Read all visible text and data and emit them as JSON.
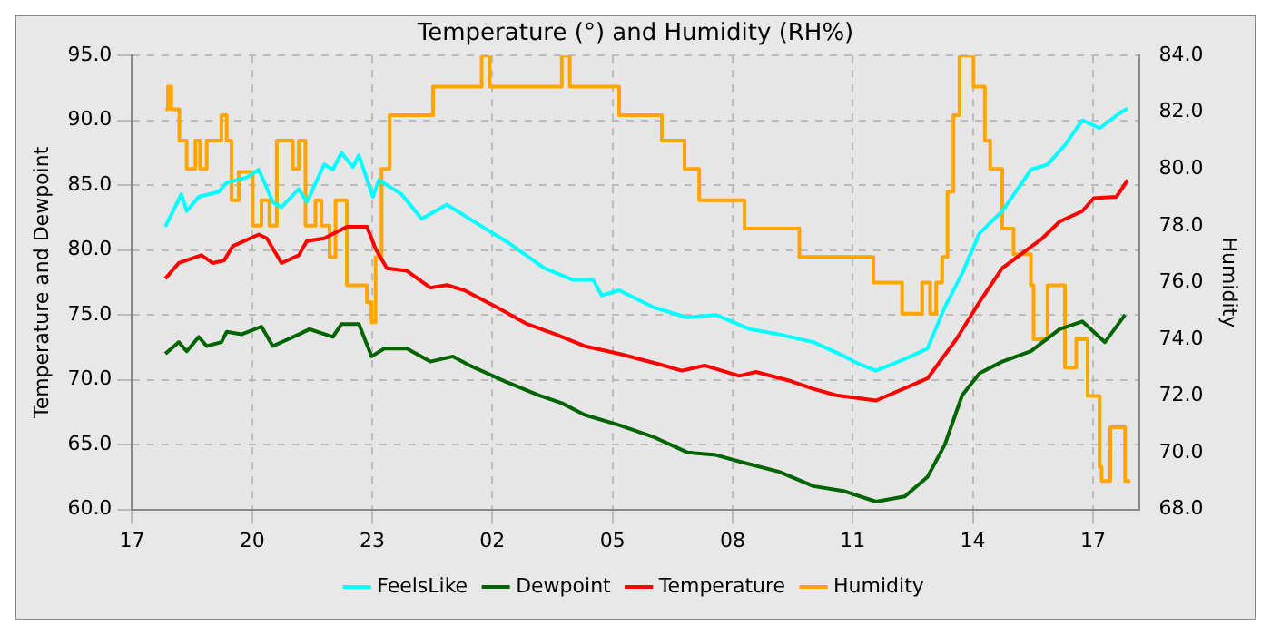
{
  "chart_data": {
    "type": "line",
    "title": "Temperature (°) and Humidity (RH%)",
    "ylabel": "Temperature and Dewpoint",
    "y2label": "Humidity",
    "xlim": [
      "--01-01T17:00",
      "--01-02T18:09"
    ],
    "xticks": [
      {
        "value": "--01-01T17:00",
        "label": "17"
      },
      {
        "value": "--01-01T20:00",
        "label": "20"
      },
      {
        "value": "--01-01T23:00",
        "label": "23"
      },
      {
        "value": "--01-02T02:00",
        "label": "02"
      },
      {
        "value": "--01-02T05:00",
        "label": "05"
      },
      {
        "value": "--01-02T08:00",
        "label": "08"
      },
      {
        "value": "--01-02T11:00",
        "label": "11"
      },
      {
        "value": "--01-02T14:00",
        "label": "14"
      },
      {
        "value": "--01-02T17:00",
        "label": "17"
      }
    ],
    "ylim": [
      60,
      95
    ],
    "yticks": [
      {
        "value": 60,
        "label": "60.0"
      },
      {
        "value": 65,
        "label": "65.0"
      },
      {
        "value": 70,
        "label": "70.0"
      },
      {
        "value": 75,
        "label": "75.0"
      },
      {
        "value": 80,
        "label": "80.0"
      },
      {
        "value": 85,
        "label": "85.0"
      },
      {
        "value": 90,
        "label": "90.0"
      },
      {
        "value": 95,
        "label": "95.0"
      }
    ],
    "y2lim": [
      68,
      84
    ],
    "y2ticks": [
      {
        "value": 68,
        "label": "68.0"
      },
      {
        "value": 70,
        "label": "70.0"
      },
      {
        "value": 72,
        "label": "72.0"
      },
      {
        "value": 74,
        "label": "74.0"
      },
      {
        "value": 76,
        "label": "76.0"
      },
      {
        "value": 78,
        "label": "78.0"
      },
      {
        "value": 80,
        "label": "80.0"
      },
      {
        "value": 82,
        "label": "82.0"
      },
      {
        "value": 84,
        "label": "84.0"
      }
    ],
    "grid": true,
    "legend": "bottom",
    "marker": "none",
    "line_style": "solid",
    "series": [
      {
        "name": "FeelsLike",
        "color": "#00ffff",
        "x": [
          "--01-01T17:50",
          "--01-01T18:14",
          "--01-01T18:22",
          "--01-01T18:40",
          "--01-01T19:10",
          "--01-01T19:22",
          "--01-01T19:52",
          "--01-01T20:10",
          "--01-01T20:31",
          "--01-01T20:44",
          "--01-01T21:10",
          "--01-01T21:22",
          "--01-01T21:48",
          "--01-01T22:01",
          "--01-01T22:14",
          "--01-01T22:31",
          "--01-01T22:40",
          "--01-01T23:01",
          "--01-01T23:10",
          "--01-01T23:44",
          "--01-02T00:14",
          "--01-02T00:52",
          "--01-02T01:26",
          "--01-02T02:26",
          "--01-02T03:18",
          "--01-02T04:01",
          "--01-02T04:31",
          "--01-02T04:44",
          "--01-02T05:10",
          "--01-02T06:01",
          "--01-02T06:52",
          "--01-02T07:35",
          "--01-02T08:26",
          "--01-02T09:10",
          "--01-02T10:01",
          "--01-02T10:48",
          "--01-02T11:10",
          "--01-02T11:35",
          "--01-02T12:18",
          "--01-02T12:52",
          "--01-02T13:18",
          "--01-02T13:44",
          "--01-02T14:10",
          "--01-02T14:44",
          "--01-02T15:27",
          "--01-02T15:52",
          "--01-02T16:18",
          "--01-02T16:44",
          "--01-02T17:10",
          "--01-02T17:44",
          "--01-02T17:52"
        ],
        "values": [
          81.8,
          84.3,
          83.0,
          84.1,
          84.5,
          85.2,
          85.6,
          86.2,
          83.7,
          83.3,
          84.7,
          83.7,
          86.6,
          86.2,
          87.5,
          86.4,
          87.3,
          84.1,
          85.4,
          84.3,
          82.4,
          83.5,
          82.4,
          80.5,
          78.6,
          77.7,
          77.7,
          76.5,
          76.9,
          75.6,
          74.8,
          75.0,
          73.9,
          73.5,
          72.9,
          71.8,
          71.2,
          70.7,
          71.6,
          72.4,
          75.6,
          78.2,
          81.3,
          83.0,
          86.2,
          86.6,
          88.1,
          90.0,
          89.4,
          90.7,
          90.9
        ]
      },
      {
        "name": "Dewpoint",
        "color": "#006400",
        "x": [
          "--01-01T17:50",
          "--01-01T18:10",
          "--01-01T18:22",
          "--01-01T18:40",
          "--01-01T18:52",
          "--01-01T19:14",
          "--01-01T19:22",
          "--01-01T19:44",
          "--01-01T20:14",
          "--01-01T20:31",
          "--01-01T21:10",
          "--01-01T21:26",
          "--01-01T22:01",
          "--01-01T22:14",
          "--01-01T22:40",
          "--01-01T22:59",
          "--01-01T23:18",
          "--01-01T23:52",
          "--01-02T00:27",
          "--01-02T01:01",
          "--01-02T01:26",
          "--01-02T02:18",
          "--01-02T03:10",
          "--01-02T03:44",
          "--01-02T04:18",
          "--01-02T05:10",
          "--01-02T06:01",
          "--01-02T06:52",
          "--01-02T07:35",
          "--01-02T08:10",
          "--01-02T09:10",
          "--01-02T10:01",
          "--01-02T10:48",
          "--01-02T11:35",
          "--01-02T12:18",
          "--01-02T12:52",
          "--01-02T13:18",
          "--01-02T13:44",
          "--01-02T14:10",
          "--01-02T14:44",
          "--01-02T15:27",
          "--01-02T16:10",
          "--01-02T16:44",
          "--01-02T17:18",
          "--01-02T17:48"
        ],
        "values": [
          72.0,
          72.9,
          72.2,
          73.3,
          72.6,
          72.9,
          73.7,
          73.5,
          74.1,
          72.6,
          73.5,
          73.9,
          73.3,
          74.3,
          74.3,
          71.8,
          72.4,
          72.4,
          71.4,
          71.8,
          71.1,
          69.9,
          68.8,
          68.2,
          67.3,
          66.5,
          65.6,
          64.4,
          64.2,
          63.7,
          62.9,
          61.8,
          61.4,
          60.6,
          61.0,
          62.5,
          65.0,
          68.8,
          70.5,
          71.4,
          72.2,
          73.9,
          74.5,
          72.9,
          75.0
        ]
      },
      {
        "name": "Temperature",
        "color": "#ff0000",
        "x": [
          "--01-01T17:50",
          "--01-01T18:10",
          "--01-01T18:44",
          "--01-01T19:01",
          "--01-01T19:18",
          "--01-01T19:31",
          "--01-01T20:10",
          "--01-01T20:22",
          "--01-01T20:44",
          "--01-01T21:10",
          "--01-01T21:22",
          "--01-01T21:48",
          "--01-01T22:22",
          "--01-01T22:52",
          "--01-01T23:05",
          "--01-01T23:22",
          "--01-01T23:52",
          "--01-02T00:27",
          "--01-02T00:52",
          "--01-02T01:18",
          "--01-02T02:10",
          "--01-02T02:52",
          "--01-02T03:35",
          "--01-02T04:18",
          "--01-02T05:10",
          "--01-02T06:10",
          "--01-02T06:44",
          "--01-02T07:18",
          "--01-02T08:10",
          "--01-02T08:35",
          "--01-02T09:27",
          "--01-02T10:01",
          "--01-02T10:35",
          "--01-02T11:35",
          "--01-02T12:52",
          "--01-02T13:35",
          "--01-02T14:10",
          "--01-02T14:44",
          "--01-02T15:44",
          "--01-02T16:10",
          "--01-02T16:44",
          "--01-02T17:01",
          "--01-02T17:35",
          "--01-02T17:52"
        ],
        "values": [
          77.8,
          79.0,
          79.6,
          79.0,
          79.2,
          80.3,
          81.2,
          80.9,
          79.0,
          79.6,
          80.7,
          80.9,
          81.8,
          81.8,
          80.1,
          78.6,
          78.4,
          77.1,
          77.3,
          76.9,
          75.5,
          74.3,
          73.5,
          72.6,
          72.0,
          71.2,
          70.7,
          71.1,
          70.3,
          70.6,
          69.9,
          69.3,
          68.8,
          68.4,
          70.1,
          73.1,
          76.0,
          78.6,
          80.9,
          82.2,
          83.0,
          84.0,
          84.1,
          85.4
        ]
      },
      {
        "name": "Humidity",
        "color": "#ffa500",
        "type": "step",
        "axis": "y2",
        "x": [
          "--01-01T17:50",
          "--01-01T17:54",
          "--01-01T17:59",
          "--01-01T18:11",
          "--01-01T18:22",
          "--01-01T18:35",
          "--01-01T18:42",
          "--01-01T18:52",
          "--01-01T19:14",
          "--01-01T19:22",
          "--01-01T19:29",
          "--01-01T19:40",
          "--01-01T20:01",
          "--01-01T20:14",
          "--01-01T20:26",
          "--01-01T20:37",
          "--01-01T21:01",
          "--01-01T21:10",
          "--01-01T21:20",
          "--01-01T21:35",
          "--01-01T21:44",
          "--01-01T21:56",
          "--01-01T22:05",
          "--01-01T22:22",
          "--01-01T22:52",
          "--01-01T22:59",
          "--01-01T23:05",
          "--01-01T23:14",
          "--01-01T23:26",
          "--01-02T00:31",
          "--01-02T01:44",
          "--01-02T01:56",
          "--01-02T03:44",
          "--01-02T03:56",
          "--01-02T05:10",
          "--01-02T06:14",
          "--01-02T06:48",
          "--01-02T07:10",
          "--01-02T08:18",
          "--01-02T09:40",
          "--01-02T11:31",
          "--01-02T12:14",
          "--01-02T12:44",
          "--01-02T12:56",
          "--01-02T13:05",
          "--01-02T13:14",
          "--01-02T13:22",
          "--01-02T13:31",
          "--01-02T13:40",
          "--01-02T14:01",
          "--01-02T14:18",
          "--01-02T14:26",
          "--01-02T14:44",
          "--01-02T15:01",
          "--01-02T15:27",
          "--01-02T15:31",
          "--01-02T15:52",
          "--01-02T16:18",
          "--01-02T16:35",
          "--01-02T16:52",
          "--01-02T17:10",
          "--01-02T17:13",
          "--01-02T17:26",
          "--01-02T17:48",
          "--01-02T17:56"
        ],
        "values": [
          82.1,
          82.9,
          82.1,
          81.0,
          80.0,
          81.0,
          80.0,
          81.0,
          81.9,
          81.0,
          78.9,
          79.9,
          78.0,
          78.9,
          78.0,
          81.0,
          80.0,
          81.0,
          78.0,
          78.9,
          78.0,
          76.9,
          78.9,
          75.9,
          75.3,
          74.6,
          76.9,
          80.0,
          81.9,
          82.9,
          84.0,
          82.9,
          84.0,
          82.9,
          81.9,
          81.0,
          80.0,
          78.9,
          77.9,
          76.9,
          76.0,
          74.9,
          76.0,
          74.9,
          76.0,
          76.9,
          79.2,
          81.9,
          84.0,
          82.9,
          81.0,
          80.0,
          77.9,
          77.0,
          75.9,
          74.0,
          75.9,
          73.0,
          74.0,
          72.0,
          69.5,
          69.0,
          70.9,
          69.0,
          69.0
        ]
      }
    ]
  }
}
